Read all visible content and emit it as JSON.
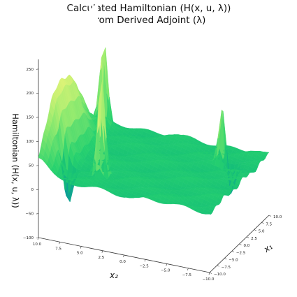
{
  "chart_data": {
    "type": "surface",
    "title": "Calculated Hamiltonian (H(x, u, λ))",
    "subtitle": "from Derived Adjoint (λ)",
    "xlabel": "x₁",
    "ylabel": "x₂",
    "zlabel": "Hamiltonian (H(x, u, λ))",
    "x_ticks": [
      "−10.0",
      "−7.5",
      "−5.0",
      "−2.5",
      "0.0",
      "2.5",
      "5.0",
      "7.5",
      "10.0"
    ],
    "y_ticks": [
      "10.0",
      "7.5",
      "5.0",
      "2.5",
      "0.0",
      "−2.5",
      "−5.0",
      "−7.5",
      "−10.0"
    ],
    "z_ticks": [
      "−100",
      "−50",
      "0",
      "50",
      "100",
      "150",
      "200",
      "250"
    ],
    "xlim": [
      -10,
      10
    ],
    "ylim": [
      -10,
      10
    ],
    "zlim": [
      -100,
      270
    ],
    "colormap": "summer-like (blue → green → yellow)",
    "grid": false,
    "features": [
      {
        "kind": "plateau",
        "z": 25
      },
      {
        "kind": "spike",
        "x1": -5.5,
        "x2": 4.2,
        "z": 235
      },
      {
        "kind": "spike",
        "x1": 4.8,
        "x2": -6.5,
        "z": 210
      },
      {
        "kind": "spike",
        "x1": 8.5,
        "x2": 8.8,
        "z": 205
      },
      {
        "kind": "trough",
        "x1": -6.0,
        "x2": 8.0,
        "z": -70
      },
      {
        "kind": "trough",
        "x1": 5.0,
        "x2": -7.0,
        "z": -80
      }
    ]
  }
}
